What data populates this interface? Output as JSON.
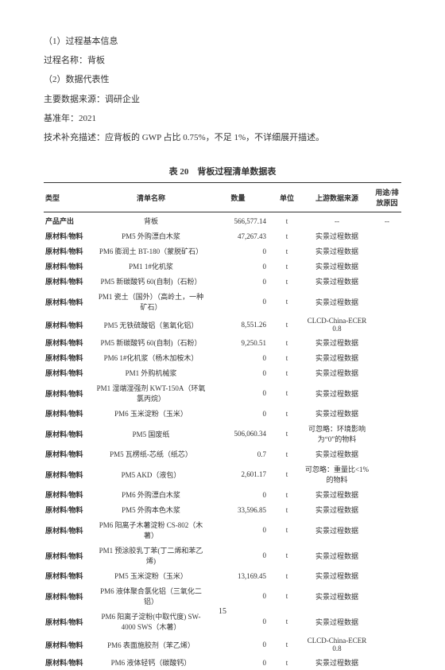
{
  "info": {
    "l1": "（1）过程基本信息",
    "l2": "过程名称：背板",
    "l3": "（2）数据代表性",
    "l4": "主要数据来源：调研企业",
    "l5": "基准年：2021",
    "l6": "技术补充描述：应背板的 GWP 占比 0.75%，不足 1%，不详细展开描述。"
  },
  "table_title": "表 20　背板过程清单数据表",
  "headers": {
    "type": "类型",
    "name": "清单名称",
    "qty": "数量",
    "unit": "单位",
    "src": "上游数据来源",
    "reason": "用途/排放原因"
  },
  "rows": [
    {
      "type": "产品产出",
      "name": "背板",
      "qty": "566,577.14",
      "unit": "t",
      "src": "--",
      "reason": "--"
    },
    {
      "type": "原材料/物料",
      "name": "PM5 外购漂白木浆",
      "qty": "47,267.43",
      "unit": "t",
      "src": "实景过程数据",
      "reason": ""
    },
    {
      "type": "原材料/物料",
      "name": "PM6 膨润土 BT-180（蒙脱矿石）",
      "qty": "0",
      "unit": "t",
      "src": "实景过程数据",
      "reason": ""
    },
    {
      "type": "原材料/物料",
      "name": "PM1 1#化机浆",
      "qty": "0",
      "unit": "t",
      "src": "实景过程数据",
      "reason": ""
    },
    {
      "type": "原材料/物料",
      "name": "PM5 新碳酸钙 60(自制)（石粉）",
      "qty": "0",
      "unit": "t",
      "src": "实景过程数据",
      "reason": ""
    },
    {
      "type": "原材料/物料",
      "name": "PM1 瓷土（国外）（高岭土，一种矿石）",
      "qty": "0",
      "unit": "t",
      "src": "实景过程数据",
      "reason": ""
    },
    {
      "type": "原材料/物料",
      "name": "PM5 无铁硫酸铝（氢氧化铝）",
      "qty": "8,551.26",
      "unit": "t",
      "src": "CLCD-China-ECER 0.8",
      "reason": ""
    },
    {
      "type": "原材料/物料",
      "name": "PM5 新碳酸钙 60(自制)（石粉）",
      "qty": "9,250.51",
      "unit": "t",
      "src": "实景过程数据",
      "reason": ""
    },
    {
      "type": "原材料/物料",
      "name": "PM6 1#化机浆（杨木加桉木）",
      "qty": "0",
      "unit": "t",
      "src": "实景过程数据",
      "reason": ""
    },
    {
      "type": "原材料/物料",
      "name": "PM1 外购机械浆",
      "qty": "0",
      "unit": "t",
      "src": "实景过程数据",
      "reason": ""
    },
    {
      "type": "原材料/物料",
      "name": "PM1 湿端湿强剂 KWT-150A（环氧氯丙烷）",
      "qty": "0",
      "unit": "t",
      "src": "实景过程数据",
      "reason": ""
    },
    {
      "type": "原材料/物料",
      "name": "PM6 玉米淀粉（玉米）",
      "qty": "0",
      "unit": "t",
      "src": "实景过程数据",
      "reason": ""
    },
    {
      "type": "原材料/物料",
      "name": "PM5 国废纸",
      "qty": "506,060.34",
      "unit": "t",
      "src": "可忽略：环境影响为“0”的物料",
      "reason": ""
    },
    {
      "type": "原材料/物料",
      "name": "PM5 瓦楞纸-芯纸（纸芯）",
      "qty": "0.7",
      "unit": "t",
      "src": "实景过程数据",
      "reason": ""
    },
    {
      "type": "原材料/物料",
      "name": "PM5 AKD（液包）",
      "qty": "2,601.17",
      "unit": "t",
      "src": "可忽略：重量比<1%的物料",
      "reason": ""
    },
    {
      "type": "原材料/物料",
      "name": "PM6 外购漂白木浆",
      "qty": "0",
      "unit": "t",
      "src": "实景过程数据",
      "reason": ""
    },
    {
      "type": "原材料/物料",
      "name": "PM5 外购本色木浆",
      "qty": "33,596.85",
      "unit": "t",
      "src": "实景过程数据",
      "reason": ""
    },
    {
      "type": "原材料/物料",
      "name": "PM6 阳离子木薯淀粉 CS-802（木薯）",
      "qty": "0",
      "unit": "t",
      "src": "实景过程数据",
      "reason": ""
    },
    {
      "type": "原材料/物料",
      "name": "PM1 预涂胶乳丁苯(丁二烯和苯乙烯)",
      "qty": "0",
      "unit": "t",
      "src": "实景过程数据",
      "reason": ""
    },
    {
      "type": "原材料/物料",
      "name": "PM5 玉米淀粉（玉米）",
      "qty": "13,169.45",
      "unit": "t",
      "src": "实景过程数据",
      "reason": ""
    },
    {
      "type": "原材料/物料",
      "name": "PM6 液体聚合氯化铝（三氧化二铝）",
      "qty": "0",
      "unit": "t",
      "src": "实景过程数据",
      "reason": ""
    },
    {
      "type": "原材料/物料",
      "name": "PM6 阳离子淀粉(中取代度) SW-4000 SWS（木薯）",
      "qty": "0",
      "unit": "t",
      "src": "实景过程数据",
      "reason": ""
    },
    {
      "type": "原材料/物料",
      "name": "PM6 表面施胶剂（苯乙烯）",
      "qty": "0",
      "unit": "t",
      "src": "CLCD-China-ECER 0.8",
      "reason": ""
    },
    {
      "type": "原材料/物料",
      "name": "PM6 液体轻钙（碳酸钙）",
      "qty": "0",
      "unit": "t",
      "src": "实景过程数据",
      "reason": ""
    }
  ],
  "page": "15"
}
